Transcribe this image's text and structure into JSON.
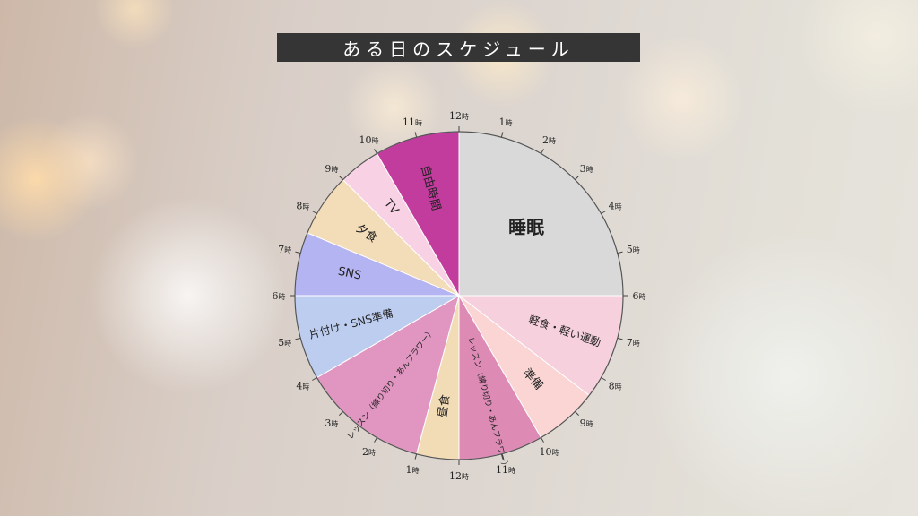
{
  "title": "ある日のスケジュール",
  "chart_data": {
    "type": "pie",
    "title": "ある日のスケジュール",
    "unit": "時",
    "hour_labels": [
      "12",
      "1",
      "2",
      "3",
      "4",
      "5",
      "6",
      "7",
      "8",
      "9",
      "10",
      "11",
      "12",
      "1",
      "2",
      "3",
      "4",
      "5",
      "6",
      "7",
      "8",
      "9",
      "10",
      "11"
    ],
    "segments": [
      {
        "label": "睡眠",
        "start": 0,
        "end": 6,
        "color": "#d9d9d9"
      },
      {
        "label": "軽食・軽い運動",
        "start": 6,
        "end": 8.5,
        "color": "#f7d0dd"
      },
      {
        "label": "準備",
        "start": 8.5,
        "end": 10,
        "color": "#fad5d3"
      },
      {
        "label": "レッスン（練り切り・あんフラワー）",
        "start": 10,
        "end": 12,
        "color": "#dd8bb5"
      },
      {
        "label": "昼食",
        "start": 12,
        "end": 13,
        "color": "#f2dcb6"
      },
      {
        "label": "レッスン（練り切り・あんフラワー）",
        "start": 13,
        "end": 16,
        "color": "#e196c1"
      },
      {
        "label": "片付け・SNS準備",
        "start": 16,
        "end": 18,
        "color": "#bccdf0"
      },
      {
        "label": "SNS",
        "start": 18,
        "end": 19.5,
        "color": "#b4b4f2"
      },
      {
        "label": "夕食",
        "start": 19.5,
        "end": 21,
        "color": "#f3dcb8"
      },
      {
        "label": "TV",
        "start": 21,
        "end": 22,
        "color": "#f8d2e4"
      },
      {
        "label": "自由時間",
        "start": 22,
        "end": 24,
        "color": "#c23c9e"
      }
    ]
  }
}
